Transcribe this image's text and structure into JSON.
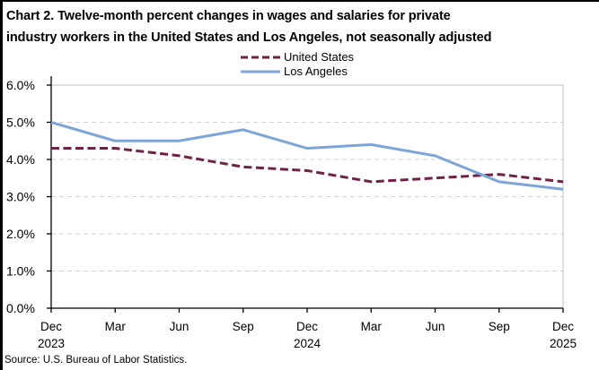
{
  "title_lines": [
    "Chart 2. Twelve-month percent changes in wages and salaries for private",
    "industry workers in the United States and Los Angeles, not seasonally adjusted"
  ],
  "source": "Source: U.S. Bureau of Labor Statistics.",
  "chart_data": {
    "type": "line",
    "title": "Chart 2. Twelve-month percent changes in wages and salaries for private industry workers in the United States and Los Angeles, not seasonally adjusted",
    "categories": [
      "Dec 2023",
      "Mar 2024",
      "Jun 2024",
      "Sep 2024",
      "Dec 2024",
      "Mar 2025",
      "Jun 2025",
      "Sep 2025",
      "Dec 2025"
    ],
    "x_tick_labels": [
      {
        "month": "Dec",
        "year": "2023"
      },
      {
        "month": "Mar",
        "year": ""
      },
      {
        "month": "Jun",
        "year": ""
      },
      {
        "month": "Sep",
        "year": ""
      },
      {
        "month": "Dec",
        "year": "2024"
      },
      {
        "month": "Mar",
        "year": ""
      },
      {
        "month": "Jun",
        "year": ""
      },
      {
        "month": "Sep",
        "year": ""
      },
      {
        "month": "Dec",
        "year": "2025"
      }
    ],
    "series": [
      {
        "name": "United States",
        "color": "#6E2346",
        "dash": "9 4.5",
        "values": [
          4.3,
          4.3,
          4.1,
          3.8,
          3.7,
          3.4,
          3.5,
          3.6,
          3.4
        ]
      },
      {
        "name": "Los Angeles",
        "color": "#7DA5D7",
        "dash": "",
        "values": [
          5.0,
          4.5,
          4.5,
          4.8,
          4.3,
          4.4,
          4.1,
          3.4,
          3.2
        ]
      }
    ],
    "ylim": [
      0,
      6
    ],
    "ytick_labels": [
      "0.0%",
      "1.0%",
      "2.0%",
      "3.0%",
      "4.0%",
      "5.0%",
      "6.0%"
    ],
    "grid": "horizontal-dashed",
    "legend_position": "top-center",
    "colors": {
      "grid": "#D2D2D2",
      "plot_border": "#BFBFBF",
      "axis": "#000000",
      "text": "#000000"
    }
  }
}
